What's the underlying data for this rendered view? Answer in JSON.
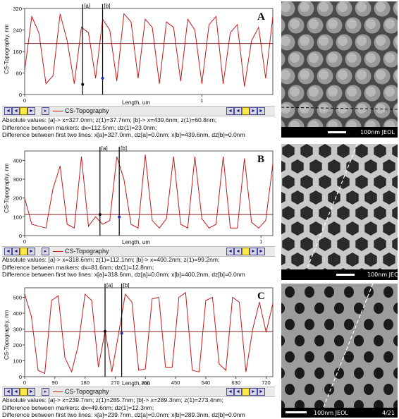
{
  "colors": {
    "trace": "#c21a1a",
    "axis": "#555555",
    "marker_a": "#000000",
    "marker_b": "#1a2db0",
    "toolbar_yellow": "#ffe94a"
  },
  "panels": [
    {
      "id": "A",
      "letter": "A",
      "ylabel": "CS-Topography, nm",
      "xlabel": "Length, um",
      "legend": "CS-Topography",
      "marker_a_label": "[a]",
      "marker_b_label": "[b]",
      "yticks": [
        "320",
        "240",
        "160",
        "80",
        "0"
      ],
      "xticks": [
        "0",
        "1"
      ],
      "info": [
        "Absolute values: [a]-> x=327.0nm;  z(1)=37.7nm;      [b]-> x=439.6nm;  z(1)=60.8nm;",
        "Difference between markers: dx=112.5nm; dz(1)=23.0nm;",
        "Difference between first two lines: x[a]=327.0nm, dz[a]=0.0nm;   x[b]=439.6nm, dz[b]=0.0nm"
      ],
      "sem_label": "100nm JEOL"
    },
    {
      "id": "B",
      "letter": "B",
      "ylabel": "CS-Topography, nm",
      "xlabel": "Length, um",
      "legend": "CS-Topography",
      "marker_a_label": "[a]",
      "marker_b_label": "[b]",
      "yticks": [
        "400",
        "300",
        "200",
        "100",
        "0"
      ],
      "xticks": [
        "0",
        "1"
      ],
      "info": [
        "Absolute values: [a]-> x=318.6nm; z(1)=112.1nm;      [b]-> x=400.2nm; z(1)=99.2nm;",
        "Difference between markers: dx=81.6nm; dz(1)=12.8nm;",
        "Difference between first two lines: x[a]=318.6nm, dz[a]=0.0nm;   x[b]=400.2nm, dz[b]=0.0nm"
      ],
      "sem_label": "100nm JEC"
    },
    {
      "id": "C",
      "letter": "C",
      "ylabel": "CS-Topography, nm",
      "xlabel": "Length, nm",
      "legend": "CS-Topography",
      "marker_a_label": "[a]",
      "marker_b_label": "[b]",
      "yticks": [
        "500",
        "400",
        "300",
        "200",
        "100",
        "0"
      ],
      "xticks": [
        "0",
        "90",
        "180",
        "270",
        "360",
        "450",
        "540",
        "630",
        "720"
      ],
      "info": [
        "Absolute values: [a]-> x=239.7nm; z(1)=285.7nm;      [b]-> x=289.3nm; z(1)=273.4nm;",
        "Difference between markers: dx=49.6nm; dz(1)=12.3nm;",
        "Difference between first two lines: x[a]=239.7nm, dz[a]=0.0nm;   x[b]=289.3nm, dz[b]=0.0nm"
      ],
      "sem_label": "100nm JEOL",
      "sem_label_extra": "4/21"
    }
  ],
  "chart_data": [
    {
      "type": "line",
      "title": "",
      "xlabel": "Length, um",
      "ylabel": "CS-Topography, nm",
      "ylim": [
        0,
        320
      ],
      "xlim": [
        0,
        1.4
      ],
      "series": [
        {
          "name": "CS-Topography",
          "x": [
            0.0,
            0.04,
            0.08,
            0.12,
            0.16,
            0.2,
            0.24,
            0.28,
            0.32,
            0.36,
            0.4,
            0.44,
            0.48,
            0.52,
            0.56,
            0.6,
            0.64,
            0.68,
            0.72,
            0.76,
            0.8,
            0.84,
            0.88,
            0.92,
            0.96,
            1.0,
            1.04,
            1.08,
            1.12,
            1.16,
            1.2,
            1.24,
            1.28,
            1.32,
            1.36,
            1.4
          ],
          "y": [
            90,
            290,
            230,
            40,
            70,
            300,
            200,
            40,
            250,
            230,
            60,
            280,
            240,
            50,
            300,
            270,
            60,
            280,
            250,
            40,
            270,
            250,
            50,
            280,
            240,
            40,
            260,
            290,
            40,
            230,
            260,
            30,
            200,
            250,
            60,
            290
          ]
        }
      ],
      "hline": 190,
      "markers": {
        "a": {
          "x": 0.327,
          "z": 37.7
        },
        "b": {
          "x": 0.4396,
          "z": 60.8
        }
      }
    },
    {
      "type": "line",
      "title": "",
      "xlabel": "Length, um",
      "ylabel": "CS-Topography, nm",
      "ylim": [
        0,
        450
      ],
      "xlim": [
        0,
        1.05
      ],
      "series": [
        {
          "name": "CS-Topography",
          "x": [
            0.0,
            0.03,
            0.06,
            0.09,
            0.12,
            0.15,
            0.18,
            0.21,
            0.24,
            0.27,
            0.3,
            0.33,
            0.36,
            0.39,
            0.42,
            0.45,
            0.48,
            0.51,
            0.54,
            0.57,
            0.6,
            0.63,
            0.66,
            0.69,
            0.72,
            0.75,
            0.78,
            0.81,
            0.84,
            0.87,
            0.9,
            0.93,
            0.96,
            0.99,
            1.02,
            1.05
          ],
          "y": [
            200,
            60,
            50,
            40,
            250,
            370,
            60,
            40,
            420,
            50,
            100,
            60,
            80,
            420,
            300,
            60,
            40,
            430,
            80,
            40,
            90,
            420,
            60,
            40,
            420,
            90,
            40,
            60,
            420,
            40,
            40,
            410,
            70,
            40,
            80,
            380
          ]
        }
      ],
      "hline": 112,
      "markers": {
        "a": {
          "x": 0.3186,
          "z": 112.1
        },
        "b": {
          "x": 0.4002,
          "z": 99.2
        }
      }
    },
    {
      "type": "line",
      "title": "",
      "xlabel": "Length, nm",
      "ylabel": "CS-Topography, nm",
      "ylim": [
        0,
        560
      ],
      "xlim": [
        0,
        740
      ],
      "series": [
        {
          "name": "CS-Topography",
          "x": [
            0,
            20,
            40,
            60,
            80,
            100,
            120,
            140,
            160,
            180,
            200,
            220,
            240,
            260,
            280,
            300,
            320,
            340,
            360,
            380,
            400,
            420,
            440,
            460,
            480,
            500,
            520,
            540,
            560,
            580,
            600,
            620,
            640,
            660,
            680,
            700,
            720,
            740
          ],
          "y": [
            520,
            380,
            40,
            20,
            480,
            510,
            120,
            30,
            200,
            520,
            480,
            60,
            290,
            30,
            270,
            520,
            470,
            40,
            50,
            490,
            500,
            60,
            60,
            500,
            530,
            40,
            30,
            480,
            500,
            80,
            40,
            500,
            470,
            30,
            300,
            470,
            280,
            460
          ]
        }
      ],
      "hline": 285,
      "markers": {
        "a": {
          "x": 239.7,
          "z": 285.7
        },
        "b": {
          "x": 289.3,
          "z": 273.4
        }
      }
    }
  ]
}
